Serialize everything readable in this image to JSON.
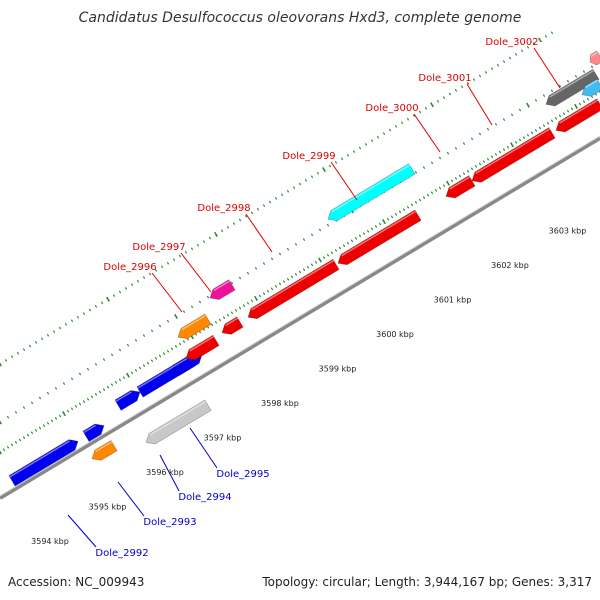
{
  "title": "Candidatus Desulfococcus oleovorans Hxd3, complete genome",
  "footer": {
    "accession": "Accession: NC_009943",
    "summary": "Topology: circular; Length: 3,944,167 bp; Genes: 3,317"
  },
  "colors": {
    "backbone": "#888888",
    "tick": "#2e8b2e",
    "label_top": "#dd0000",
    "label_bottom": "#0000cc",
    "red": "#ee0000",
    "blue": "#0000ee",
    "orange": "#ff8800",
    "cyan": "#00ffff",
    "magenta": "#ee1199",
    "gray": "#c8c8c8",
    "darkgray": "#666666",
    "lightblue": "#44bbee",
    "pink": "#ff8888"
  },
  "scale": {
    "labels": [
      "3594 kbp",
      "3595 kbp",
      "3596 kbp",
      "3597 kbp",
      "3598 kbp",
      "3599 kbp",
      "3600 kbp",
      "3601 kbp",
      "3602 kbp",
      "3603 kbp"
    ]
  },
  "gene_labels_top": [
    "Dole_2996",
    "Dole_2997",
    "Dole_2998",
    "Dole_2999",
    "Dole_3000",
    "Dole_3001",
    "Dole_3002"
  ],
  "gene_labels_bottom": [
    "Dole_2992",
    "Dole_2993",
    "Dole_2994",
    "Dole_2995"
  ],
  "features": [
    {
      "color": "blue"
    },
    {
      "color": "blue"
    },
    {
      "color": "blue"
    },
    {
      "color": "blue"
    },
    {
      "color": "blue"
    },
    {
      "color": "red"
    },
    {
      "color": "red"
    },
    {
      "color": "red"
    },
    {
      "color": "red"
    },
    {
      "color": "red"
    },
    {
      "color": "red"
    },
    {
      "color": "red"
    },
    {
      "color": "orange"
    },
    {
      "color": "orange"
    },
    {
      "color": "magenta"
    },
    {
      "color": "cyan"
    },
    {
      "color": "gray"
    },
    {
      "color": "darkgray"
    },
    {
      "color": "lightblue"
    },
    {
      "color": "pink"
    }
  ]
}
